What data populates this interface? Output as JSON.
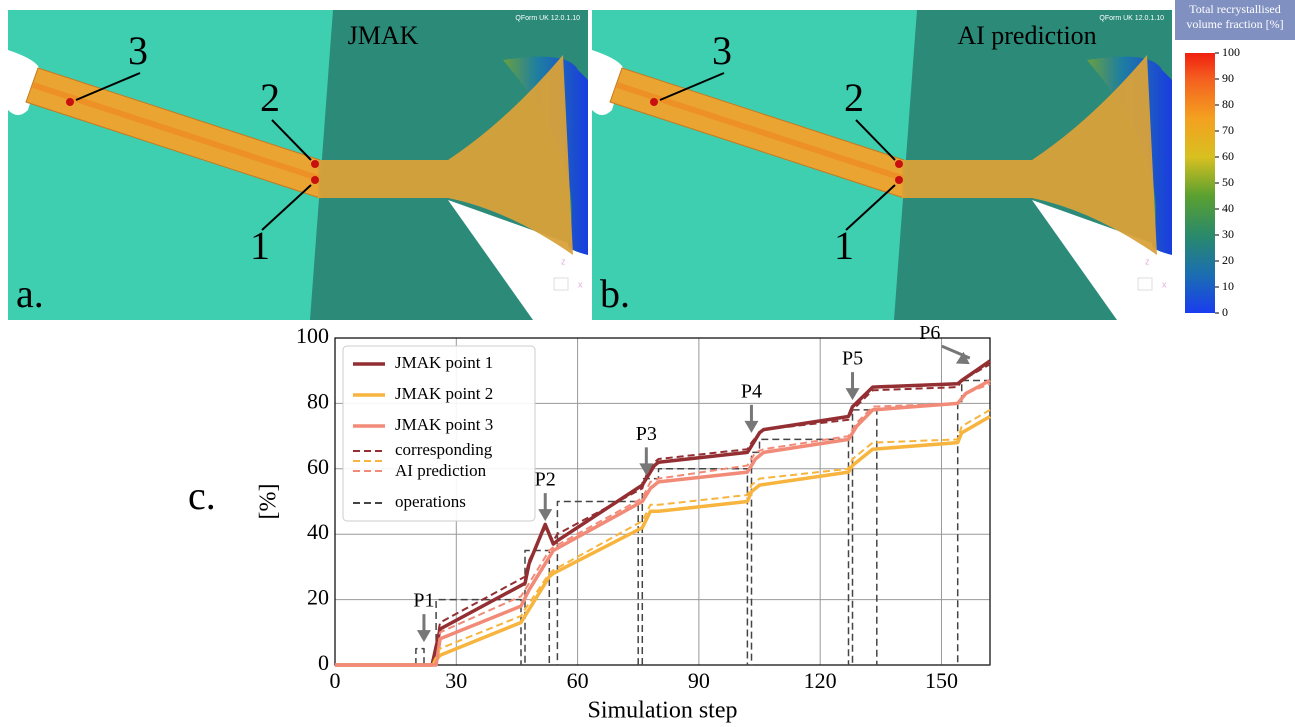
{
  "panels": [
    {
      "label": "a.",
      "title": "JMAK",
      "point_labels": [
        "3",
        "2",
        "1"
      ],
      "watermark": "QForm UK 12.0.1.10",
      "axis_icon": [
        "z",
        "x"
      ]
    },
    {
      "label": "b.",
      "title": "AI prediction",
      "point_labels": [
        "3",
        "2",
        "1"
      ],
      "watermark": "QForm UK 12.0.1.10",
      "axis_icon": [
        "z",
        "x"
      ]
    }
  ],
  "colorbar": {
    "title": [
      "Total recrystallised",
      "volume fraction [%]"
    ],
    "ticks": [
      0,
      10,
      20,
      30,
      40,
      50,
      60,
      70,
      80,
      90,
      100
    ]
  },
  "chart_data": {
    "type": "line",
    "panel_label": "c.",
    "xlabel": "Simulation step",
    "ylabel": "[%]",
    "xlim": [
      0,
      162
    ],
    "ylim": [
      0,
      100
    ],
    "xticks": [
      0,
      30,
      60,
      90,
      120,
      150
    ],
    "yticks": [
      0,
      20,
      40,
      60,
      80,
      100
    ],
    "grid": true,
    "legend": "upper left",
    "legend_note": [
      "corresponding",
      "AI prediction"
    ],
    "series": [
      {
        "name": "JMAK point 1",
        "color": "#932f32",
        "dash": false,
        "x": [
          0,
          22,
          24,
          26,
          47,
          48,
          52,
          54,
          55,
          76,
          77,
          79,
          80,
          102,
          103,
          105,
          106,
          127,
          128,
          133,
          154,
          155,
          162
        ],
        "values": [
          0,
          0,
          0,
          11,
          25,
          31,
          43,
          37,
          38,
          55,
          57,
          61,
          62,
          65,
          67,
          71,
          72,
          76,
          79,
          85,
          86,
          87,
          93
        ]
      },
      {
        "name": "JMAK point 2",
        "color": "#f7b43e",
        "dash": false,
        "x": [
          0,
          22,
          24,
          26,
          46,
          47,
          53,
          54,
          76,
          78,
          80,
          102,
          103,
          105,
          127,
          128,
          133,
          154,
          155,
          162
        ],
        "values": [
          0,
          0,
          0,
          3,
          13,
          15,
          27,
          28,
          42,
          47,
          47,
          50,
          53,
          55,
          59,
          61,
          66,
          68,
          71,
          76
        ]
      },
      {
        "name": "JMAK point 3",
        "color": "#f28a78",
        "dash": false,
        "x": [
          0,
          22,
          25,
          26,
          46,
          48,
          53,
          54,
          76,
          78,
          80,
          102,
          104,
          106,
          127,
          129,
          133,
          154,
          156,
          162
        ],
        "values": [
          0,
          0,
          0,
          8,
          18,
          23,
          33,
          35,
          50,
          54,
          56,
          59,
          63,
          65,
          69,
          73,
          78,
          80,
          83,
          87
        ]
      },
      {
        "color": "#932f32",
        "dash": true,
        "x": [
          0,
          22,
          24,
          26,
          47,
          48,
          52,
          54,
          55,
          76,
          77,
          79,
          80,
          102,
          103,
          105,
          106,
          127,
          128,
          133,
          154,
          155,
          162
        ],
        "values": [
          0,
          0,
          0,
          13,
          27,
          32,
          42,
          38,
          40,
          54,
          58,
          62,
          63,
          66,
          68,
          71,
          72,
          75,
          78,
          84,
          85,
          87,
          92
        ]
      },
      {
        "color": "#f7b43e",
        "dash": true,
        "x": [
          0,
          22,
          24,
          26,
          46,
          47,
          53,
          54,
          76,
          78,
          80,
          102,
          103,
          105,
          127,
          128,
          133,
          154,
          155,
          162
        ],
        "values": [
          0,
          0,
          0,
          5,
          15,
          17,
          28,
          29,
          44,
          49,
          49,
          52,
          55,
          57,
          60,
          63,
          68,
          69,
          73,
          78
        ]
      },
      {
        "color": "#f28a78",
        "dash": true,
        "x": [
          0,
          22,
          25,
          26,
          46,
          48,
          53,
          54,
          76,
          78,
          80,
          102,
          104,
          106,
          127,
          129,
          133,
          154,
          156,
          162
        ],
        "values": [
          0,
          0,
          0,
          10,
          21,
          25,
          35,
          36,
          51,
          56,
          57,
          61,
          65,
          66,
          70,
          74,
          79,
          80,
          83,
          86
        ]
      },
      {
        "name": "operations",
        "color": "#444444",
        "dash": true,
        "x": [
          20,
          20,
          22,
          22,
          25,
          25,
          46,
          46,
          47,
          47,
          53,
          53,
          55,
          55,
          75,
          75,
          76,
          76,
          80,
          80,
          102,
          102,
          103,
          103,
          105,
          105,
          127,
          127,
          128,
          128,
          134,
          134,
          154,
          154,
          155,
          155,
          162,
          162
        ],
        "values": [
          0,
          5,
          5,
          0,
          0,
          20,
          20,
          0,
          0,
          35,
          35,
          0,
          0,
          50,
          50,
          0,
          0,
          57,
          57,
          60,
          60,
          0,
          0,
          65,
          65,
          69,
          69,
          0,
          0,
          78,
          78,
          0,
          0,
          80,
          80,
          87,
          87,
          0
        ]
      }
    ],
    "annotations": [
      {
        "text": "P1",
        "x": 22,
        "y": 7
      },
      {
        "text": "P2",
        "x": 52,
        "y": 44
      },
      {
        "text": "P3",
        "x": 77,
        "y": 58
      },
      {
        "text": "P4",
        "x": 103,
        "y": 71
      },
      {
        "text": "P5",
        "x": 128,
        "y": 81
      },
      {
        "text": "P6",
        "x": 157,
        "y": 92
      }
    ]
  }
}
